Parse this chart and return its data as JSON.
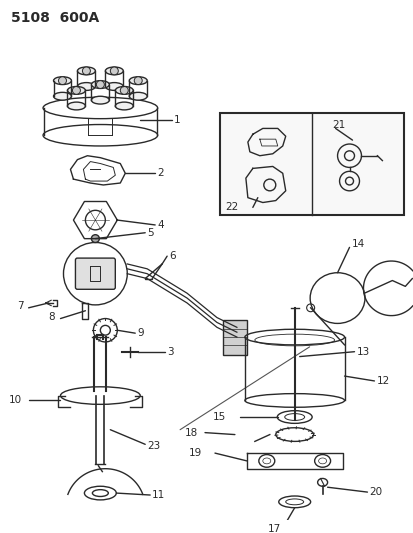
{
  "title": "5108  600A",
  "bg_color": "#ffffff",
  "line_color": "#2a2a2a",
  "fig_width": 4.14,
  "fig_height": 5.33,
  "dpi": 100
}
